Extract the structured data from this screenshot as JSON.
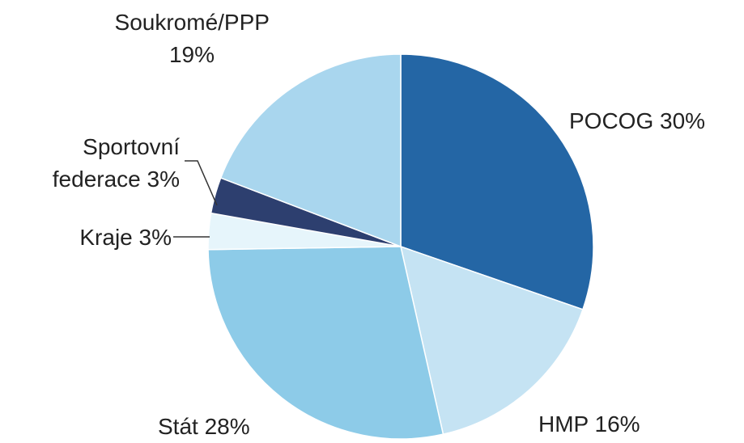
{
  "chart_data": {
    "type": "pie",
    "categories": [
      "POCOG",
      "HMP",
      "Stát",
      "Kraje",
      "Sportovní federace",
      "Soukromé/PPP"
    ],
    "values": [
      30,
      16,
      28,
      3,
      3,
      19
    ],
    "value_labels": [
      "30%",
      "16%",
      "28%",
      "3%",
      "3%",
      "19%"
    ],
    "colors": [
      "#2466a5",
      "#c5e3f3",
      "#8dcbe8",
      "#e6f5fb",
      "#2d3f6f",
      "#a9d6ee"
    ]
  }
}
